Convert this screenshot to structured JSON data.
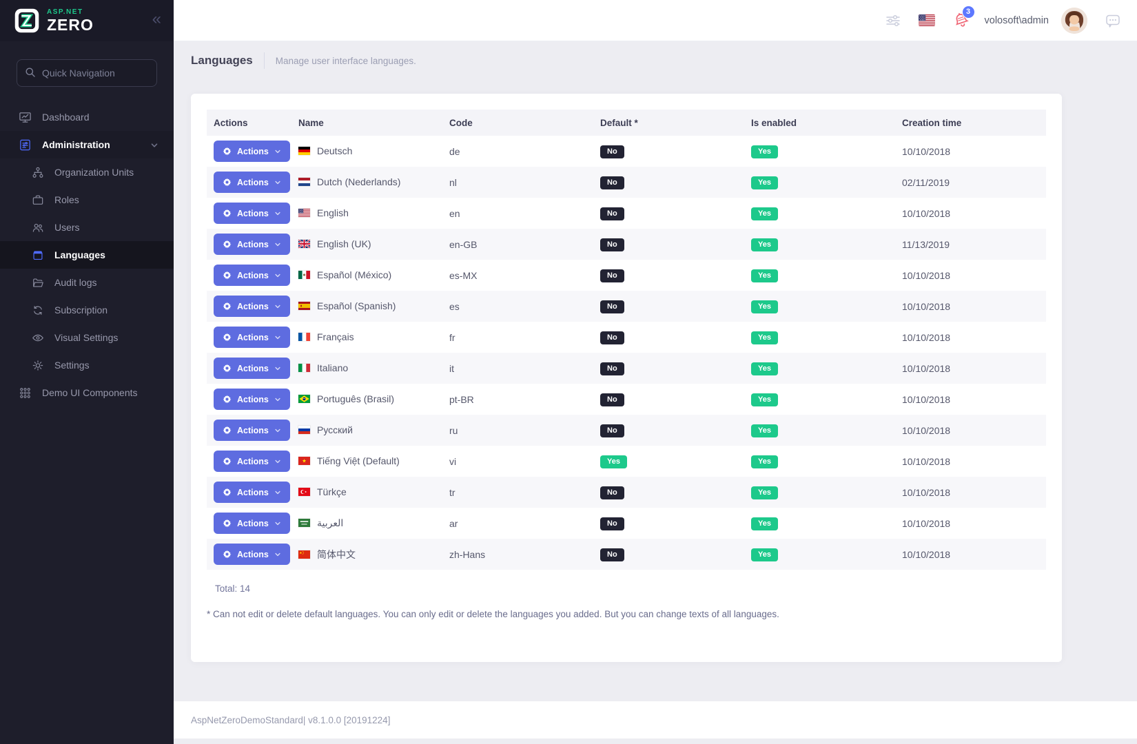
{
  "brand": {
    "logo_top": "ASP.NET",
    "logo_bottom": "ZERO"
  },
  "colors": {
    "accent": "#5e6ce0",
    "success": "#1dc98b",
    "badge_dark": "#222333",
    "sidebar_bg": "#1e1e2b",
    "notification_blue": "#5d78ff"
  },
  "sidebar": {
    "search_placeholder": "Quick Navigation",
    "items": [
      {
        "label": "Dashboard",
        "icon": "dashboard",
        "level": 1
      },
      {
        "label": "Administration",
        "icon": "administration",
        "level": 1,
        "parent_active": true,
        "expandable": true
      },
      {
        "label": "Organization Units",
        "icon": "org-units",
        "level": 2
      },
      {
        "label": "Roles",
        "icon": "roles",
        "level": 2
      },
      {
        "label": "Users",
        "icon": "users",
        "level": 2
      },
      {
        "label": "Languages",
        "icon": "languages",
        "level": 2,
        "active": true
      },
      {
        "label": "Audit logs",
        "icon": "audit-logs",
        "level": 2
      },
      {
        "label": "Subscription",
        "icon": "subscription",
        "level": 2
      },
      {
        "label": "Visual Settings",
        "icon": "visual-settings",
        "level": 2
      },
      {
        "label": "Settings",
        "icon": "settings",
        "level": 2
      },
      {
        "label": "Demo UI Components",
        "icon": "demo-ui",
        "level": 1
      }
    ]
  },
  "header": {
    "username": "volosoft\\admin",
    "notification_count": "3",
    "language_flag": "us"
  },
  "page": {
    "title": "Languages",
    "subtitle": "Manage user interface languages."
  },
  "table": {
    "columns": [
      "Actions",
      "Name",
      "Code",
      "Default *",
      "Is enabled",
      "Creation time"
    ],
    "actions_label": "Actions",
    "rows": [
      {
        "name": "Deutsch",
        "flag": "de",
        "code": "de",
        "default": "No",
        "enabled": "Yes",
        "created": "10/10/2018"
      },
      {
        "name": "Dutch (Nederlands)",
        "flag": "nl",
        "code": "nl",
        "default": "No",
        "enabled": "Yes",
        "created": "02/11/2019"
      },
      {
        "name": "English",
        "flag": "us",
        "code": "en",
        "default": "No",
        "enabled": "Yes",
        "created": "10/10/2018"
      },
      {
        "name": "English (UK)",
        "flag": "gb",
        "code": "en-GB",
        "default": "No",
        "enabled": "Yes",
        "created": "11/13/2019"
      },
      {
        "name": "Español (México)",
        "flag": "mx",
        "code": "es-MX",
        "default": "No",
        "enabled": "Yes",
        "created": "10/10/2018"
      },
      {
        "name": "Español (Spanish)",
        "flag": "es",
        "code": "es",
        "default": "No",
        "enabled": "Yes",
        "created": "10/10/2018"
      },
      {
        "name": "Français",
        "flag": "fr",
        "code": "fr",
        "default": "No",
        "enabled": "Yes",
        "created": "10/10/2018"
      },
      {
        "name": "Italiano",
        "flag": "it",
        "code": "it",
        "default": "No",
        "enabled": "Yes",
        "created": "10/10/2018"
      },
      {
        "name": "Português (Brasil)",
        "flag": "br",
        "code": "pt-BR",
        "default": "No",
        "enabled": "Yes",
        "created": "10/10/2018"
      },
      {
        "name": "Русский",
        "flag": "ru",
        "code": "ru",
        "default": "No",
        "enabled": "Yes",
        "created": "10/10/2018"
      },
      {
        "name": "Tiếng Việt (Default)",
        "flag": "vn",
        "code": "vi",
        "default": "Yes",
        "enabled": "Yes",
        "created": "10/10/2018"
      },
      {
        "name": "Türkçe",
        "flag": "tr",
        "code": "tr",
        "default": "No",
        "enabled": "Yes",
        "created": "10/10/2018"
      },
      {
        "name": "العربية",
        "flag": "sa",
        "code": "ar",
        "default": "No",
        "enabled": "Yes",
        "created": "10/10/2018"
      },
      {
        "name": "简体中文",
        "flag": "cn",
        "code": "zh-Hans",
        "default": "No",
        "enabled": "Yes",
        "created": "10/10/2018"
      }
    ],
    "total": "Total: 14",
    "footnote": "* Can not edit or delete default languages. You can only edit or delete the languages you added. But you can change texts of all languages."
  },
  "footer": {
    "text": "AspNetZeroDemoStandard| v8.1.0.0 [20191224]"
  }
}
